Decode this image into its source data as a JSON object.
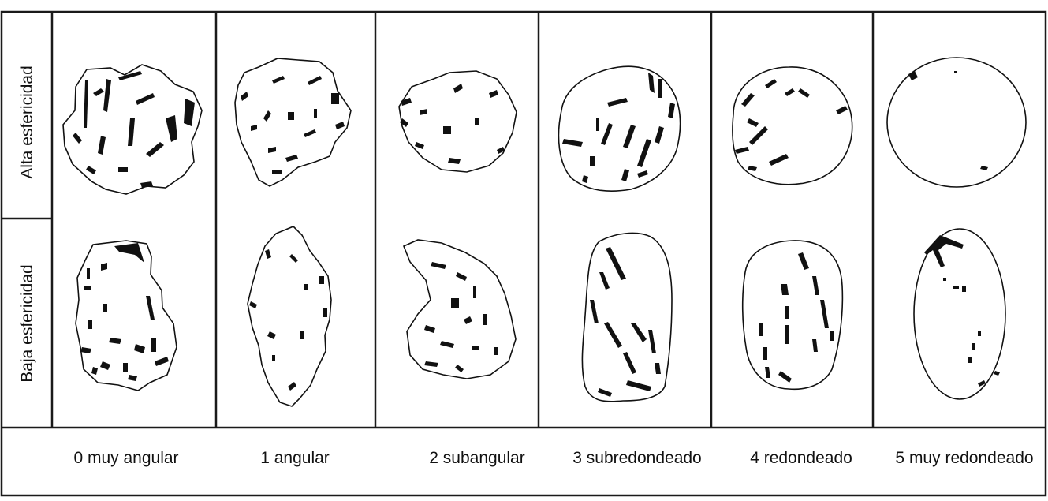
{
  "row_labels": [
    "Alta esfericidad",
    "Baja esfericidad"
  ],
  "column_labels": [
    "0 muy angular",
    "1 angular",
    "2 subangular",
    "3 subredondeado",
    "4 redondeado",
    "5 muy redondeado"
  ]
}
